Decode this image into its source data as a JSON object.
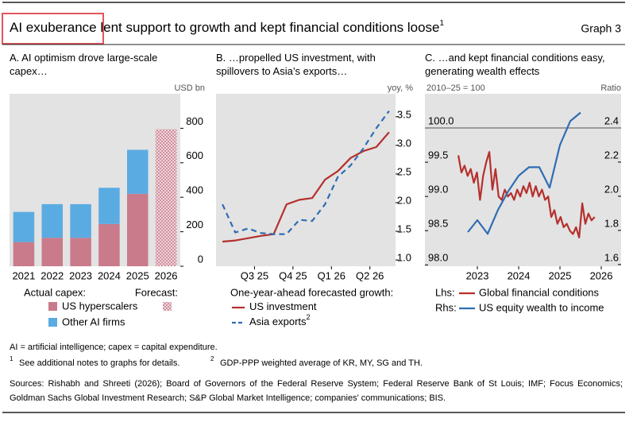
{
  "title": "AI exuberance lent support to growth and kept financial conditions loose",
  "title_note": "1",
  "graph_label": "Graph 3",
  "chart_data": [
    {
      "type": "bar",
      "stacked": true,
      "title": "A. AI optimism drove large-scale capex…",
      "y_unit": "USD bn",
      "categories": [
        "2021",
        "2022",
        "2023",
        "2024",
        "2025",
        "2026"
      ],
      "legend_title": "Actual capex:",
      "series": [
        {
          "name": "US hyperscalers",
          "color": "#c97b8b",
          "values": [
            140,
            165,
            165,
            245,
            420,
            null
          ]
        },
        {
          "name": "Other AI firms",
          "color": "#5aabe2",
          "values": [
            175,
            195,
            195,
            210,
            255,
            null
          ]
        },
        {
          "name": "Forecast:",
          "color": "#c97b8b",
          "hatch": true,
          "values": [
            null,
            null,
            null,
            null,
            null,
            795
          ]
        }
      ],
      "ylim": [
        0,
        1000
      ],
      "yticks": [
        0,
        200,
        400,
        600,
        800
      ]
    },
    {
      "type": "line",
      "title": "B. …propelled US investment, with spillovers to Asia’s exports…",
      "y_unit": "yoy, %",
      "categories": [
        null,
        null,
        "Q3 25",
        null,
        null,
        "Q4 25",
        null,
        null,
        "Q1 26",
        null,
        null,
        "Q2 26",
        null,
        null
      ],
      "legend_title": "One-year-ahead forecasted growth:",
      "series": [
        {
          "name": "US investment",
          "color": "#b5302d",
          "values": [
            1.32,
            1.34,
            1.38,
            1.42,
            1.45,
            1.97,
            2.05,
            2.08,
            2.4,
            2.55,
            2.78,
            2.9,
            2.97,
            3.23
          ]
        },
        {
          "name": "Asia exports",
          "name_note": "2",
          "color": "#2e6db4",
          "dash": true,
          "values": [
            1.97,
            1.48,
            1.55,
            1.47,
            1.45,
            1.45,
            1.7,
            1.68,
            1.97,
            2.45,
            2.65,
            2.95,
            3.3,
            3.6
          ]
        }
      ],
      "ylim": [
        0.89,
        3.9
      ],
      "yticks": [
        {
          "value": 1,
          "label": "1.0"
        },
        1.5,
        {
          "value": 2,
          "label": "2.0"
        },
        2.5,
        {
          "value": 3,
          "label": "3.0"
        },
        3.5
      ]
    },
    {
      "type": "line",
      "title": "C. …and kept financial conditions easy, generating wealth effects",
      "y_unit": "2010–25 = 100",
      "y2_unit": "Ratio",
      "xlim": [
        2021.73,
        2026.48
      ],
      "xticks": [
        2023,
        2024,
        2025,
        2026
      ],
      "series": [
        {
          "name": "Global financial conditions",
          "legend_prefix": "Lhs:",
          "color": "#b5302d",
          "x": [
            2022.54,
            2022.615,
            2022.69,
            2022.765,
            2022.84,
            2022.915,
            2022.99,
            2023.065,
            2023.14,
            2023.215,
            2023.29,
            2023.365,
            2023.44,
            2023.515,
            2023.59,
            2023.665,
            2023.74,
            2023.815,
            2023.89,
            2023.965,
            2024.04,
            2024.115,
            2024.19,
            2024.265,
            2024.34,
            2024.415,
            2024.49,
            2024.565,
            2024.64,
            2024.715,
            2024.79,
            2024.865,
            2024.94,
            2025.015,
            2025.09,
            2025.165,
            2025.24,
            2025.315,
            2025.39,
            2025.465,
            2025.54,
            2025.615,
            2025.69,
            2025.765,
            2025.84
          ],
          "values": [
            99.6,
            99.35,
            99.45,
            99.3,
            99.4,
            99.2,
            99.35,
            98.95,
            99.3,
            99.5,
            99.65,
            99.1,
            99.4,
            99.0,
            98.95,
            99.1,
            99.0,
            99.05,
            98.95,
            99.1,
            99.0,
            99.15,
            99.05,
            99.2,
            99.0,
            99.15,
            99.0,
            99.1,
            98.95,
            99.0,
            98.7,
            98.8,
            98.6,
            98.7,
            98.55,
            98.6,
            98.5,
            98.45,
            98.55,
            98.4,
            98.9,
            98.6,
            98.75,
            98.65,
            98.7
          ]
        },
        {
          "name": "US equity wealth to income",
          "legend_prefix": "Rhs:",
          "axis": "y2",
          "color": "#2e6db4",
          "x": [
            2022.77,
            2023.0,
            2023.25,
            2023.5,
            2023.75,
            2024.0,
            2024.25,
            2024.5,
            2024.75,
            2025.0,
            2025.25,
            2025.5
          ],
          "values": [
            1.79,
            1.86,
            1.78,
            1.92,
            2.03,
            2.12,
            2.17,
            2.17,
            2.05,
            2.3,
            2.44,
            2.49
          ]
        }
      ],
      "ylim": [
        97.98,
        100.5
      ],
      "yticks": [
        {
          "value": 98,
          "label": "98.0"
        },
        98.5,
        {
          "value": 99,
          "label": "99.0"
        },
        99.5,
        {
          "value": 100,
          "label": "100.0"
        }
      ],
      "y2lim": [
        1.59,
        2.6
      ],
      "y2ticks": [
        1.6,
        1.8,
        {
          "value": 2,
          "label": "2.0"
        },
        2.2,
        2.4
      ],
      "reference_line": 100
    }
  ],
  "notes": {
    "abbreviations": "AI = artificial intelligence; capex = capital expenditure.",
    "footnotes": [
      {
        "mark": "1",
        "text": "See additional notes to graphs for details."
      },
      {
        "mark": "2",
        "text": "GDP-PPP weighted average of KR, MY, SG and TH."
      }
    ],
    "sources": "Sources: Rishabh and Shreeti (2026); Board of Governors of the Federal Reserve System; Federal Reserve Bank of St Louis; IMF; Focus Economics; Goldman Sachs Global Investment Research; S&P Global Market Intelligence; companies' communications; BIS."
  }
}
